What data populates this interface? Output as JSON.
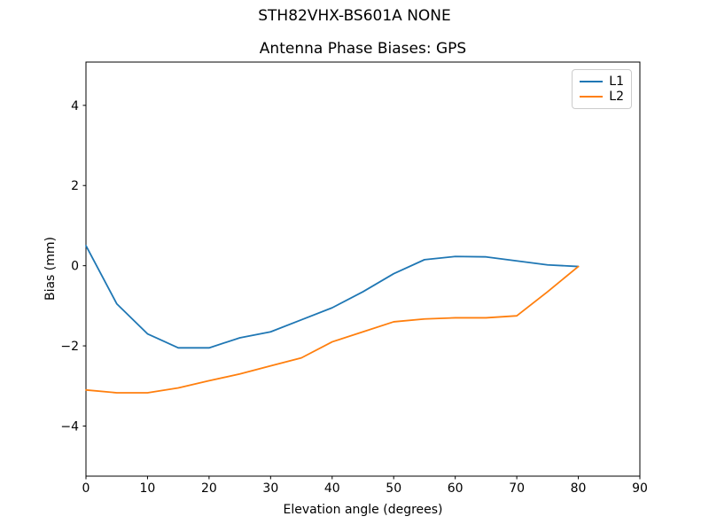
{
  "figure": {
    "suptitle": "STH82VHX-BS601A NONE",
    "background_color": "#ffffff",
    "axis_color": "#000000"
  },
  "chart_data": {
    "type": "line",
    "title": "Antenna Phase Biases: GPS",
    "xlabel": "Elevation angle (degrees)",
    "ylabel": "Bias (mm)",
    "xlim": [
      0,
      90
    ],
    "ylim": [
      -5.25,
      5.08
    ],
    "grid": false,
    "legend_position": "upper right",
    "x_ticks": [
      0,
      10,
      20,
      30,
      40,
      50,
      60,
      70,
      80,
      90
    ],
    "x_tick_labels": [
      "0",
      "10",
      "20",
      "30",
      "40",
      "50",
      "60",
      "70",
      "80",
      "90"
    ],
    "y_ticks": [
      -4,
      -2,
      0,
      2,
      4
    ],
    "y_tick_labels": [
      "−4",
      "−2",
      "0",
      "2",
      "4"
    ],
    "x": [
      0,
      5,
      10,
      15,
      20,
      25,
      30,
      35,
      40,
      45,
      50,
      55,
      60,
      65,
      70,
      75,
      80
    ],
    "series": [
      {
        "name": "L1",
        "color": "#1f77b4",
        "values": [
          0.5,
          -0.95,
          -1.7,
          -2.05,
          -2.05,
          -1.8,
          -1.65,
          -1.35,
          -1.05,
          -0.65,
          -0.2,
          0.15,
          0.23,
          0.22,
          0.12,
          0.02,
          -0.02
        ]
      },
      {
        "name": "L2",
        "color": "#ff7f0e",
        "values": [
          -3.1,
          -3.17,
          -3.17,
          -3.05,
          -2.87,
          -2.7,
          -2.5,
          -2.3,
          -1.9,
          -1.65,
          -1.4,
          -1.33,
          -1.3,
          -1.3,
          -1.25,
          -0.65,
          -0.02
        ]
      }
    ]
  }
}
